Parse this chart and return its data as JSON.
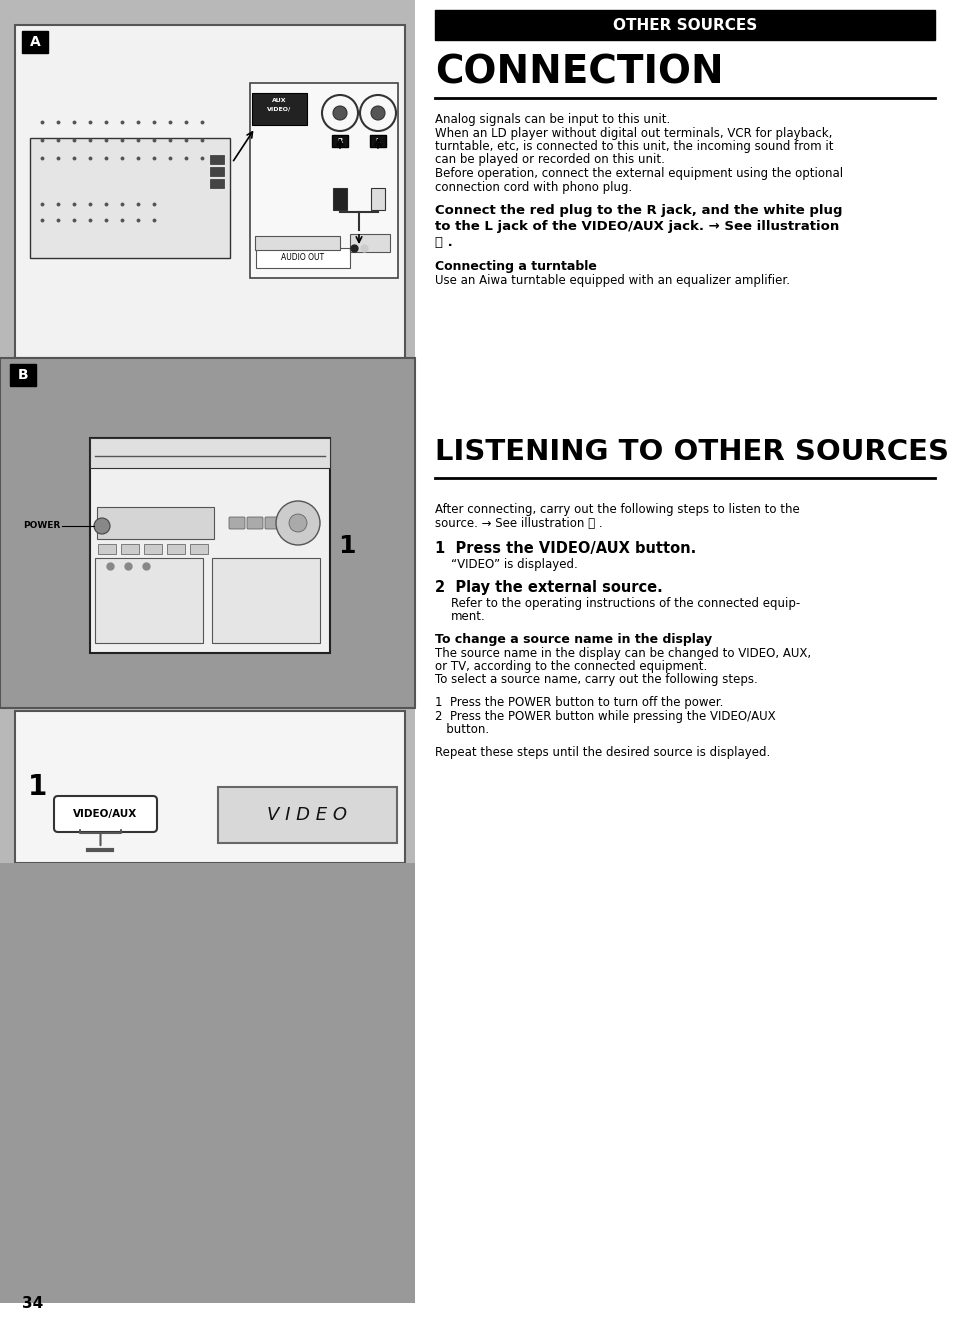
{
  "page_number": "34",
  "bg_color": "#ffffff",
  "header_text": "OTHER SOURCES",
  "section1_title": "CONNECTION",
  "section2_title": "LISTENING TO OTHER SOURCES",
  "para1_lines": [
    "Analog signals can be input to this unit.",
    "When an LD player without digital out terminals, VCR for playback,",
    "turntable, etc, is connected to this unit, the incoming sound from it",
    "can be played or recorded on this unit.",
    "Before operation, connect the external equipment using the optional",
    "connection cord with phono plug."
  ],
  "bold_para_lines": [
    "Connect the red plug to the R jack, and the white plug",
    "to the L jack of the VIDEO/AUX jack. → See illustration",
    "Ⓐ ."
  ],
  "turntable_heading": "Connecting a turntable",
  "turntable_body": "Use an Aiwa turntable equipped with an equalizer amplifier.",
  "listening_intro_lines": [
    "After connecting, carry out the following steps to listen to the",
    "source. → See illustration Ⓑ ."
  ],
  "step1_heading": "1  Press the VIDEO/AUX button.",
  "step1_body": "“VIDEO” is displayed.",
  "step2_heading": "2  Play the external source.",
  "step2_body_lines": [
    "Refer to the operating instructions of the connected equip-",
    "ment."
  ],
  "change_heading": "To change a source name in the display",
  "change_body_lines": [
    "The source name in the display can be changed to VIDEO, AUX,",
    "or TV, according to the connected equipment.",
    "To select a source name, carry out the following steps."
  ],
  "substep1": "1  Press the POWER button to turn off the power.",
  "substep2_lines": [
    "2  Press the POWER button while pressing the VIDEO/AUX",
    "   button."
  ],
  "repeat_text": "Repeat these steps until the desired source is displayed.",
  "gray_bg": "#b8b8b8",
  "dark_gray_bg": "#999999",
  "white_panel": "#f2f2f2",
  "black": "#000000",
  "white": "#ffffff"
}
